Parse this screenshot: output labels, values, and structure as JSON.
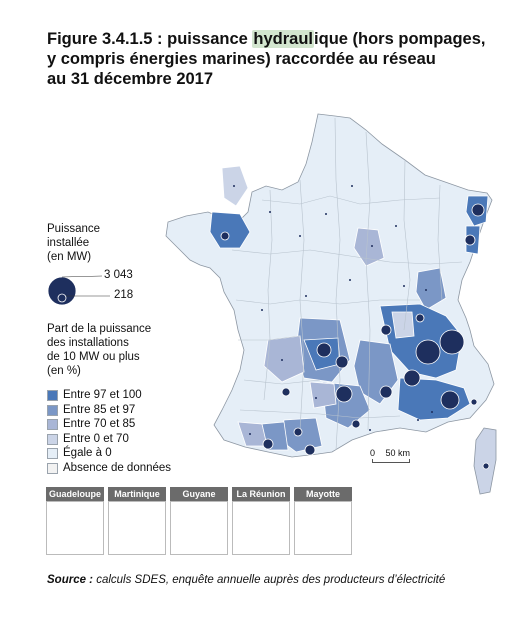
{
  "title": {
    "prefix": "Figure 3.4.1.5 : puissance ",
    "highlight": "hydraul",
    "suffix": "ique (hors pompages,",
    "line2": "y compris énergies marines) raccordée au réseau",
    "line3": "au 31 décembre 2017"
  },
  "legend_size": {
    "heading_1": "Puissance",
    "heading_2": "installée",
    "heading_3": "(en MW)",
    "max_value": "3 043",
    "min_value": "218"
  },
  "legend_share": {
    "heading_1": "Part de la puissance",
    "heading_2": "des installations",
    "heading_3": "de 10 MW ou plus",
    "heading_4": "(en %)",
    "classes": [
      {
        "label": "Entre 97 et 100",
        "color": "#4a78b8"
      },
      {
        "label": "Entre 85 et 97",
        "color": "#7b97c6"
      },
      {
        "label": "Entre 70 et 85",
        "color": "#a9b6d6"
      },
      {
        "label": "Entre 0 et 70",
        "color": "#cbd4e7"
      },
      {
        "label": "Égale à 0",
        "color": "#e5eef7"
      },
      {
        "label": "Absence de données",
        "color": "#f2f2f2"
      }
    ]
  },
  "scale": {
    "zero": "0",
    "label": "50 km"
  },
  "overseas": [
    {
      "name": "Guadeloupe",
      "fill": "#e5eef7"
    },
    {
      "name": "Martinique",
      "fill": "#e5eef7"
    },
    {
      "name": "Guyane",
      "fill": "#7b97c6"
    },
    {
      "name": "La Réunion",
      "fill": "#7b97c6"
    },
    {
      "name": "Mayotte",
      "fill": "#f2f2f2"
    }
  ],
  "source": {
    "label": "Source :",
    "text": " calculs SDES, enquête annuelle auprès des producteurs d’électricité"
  }
}
